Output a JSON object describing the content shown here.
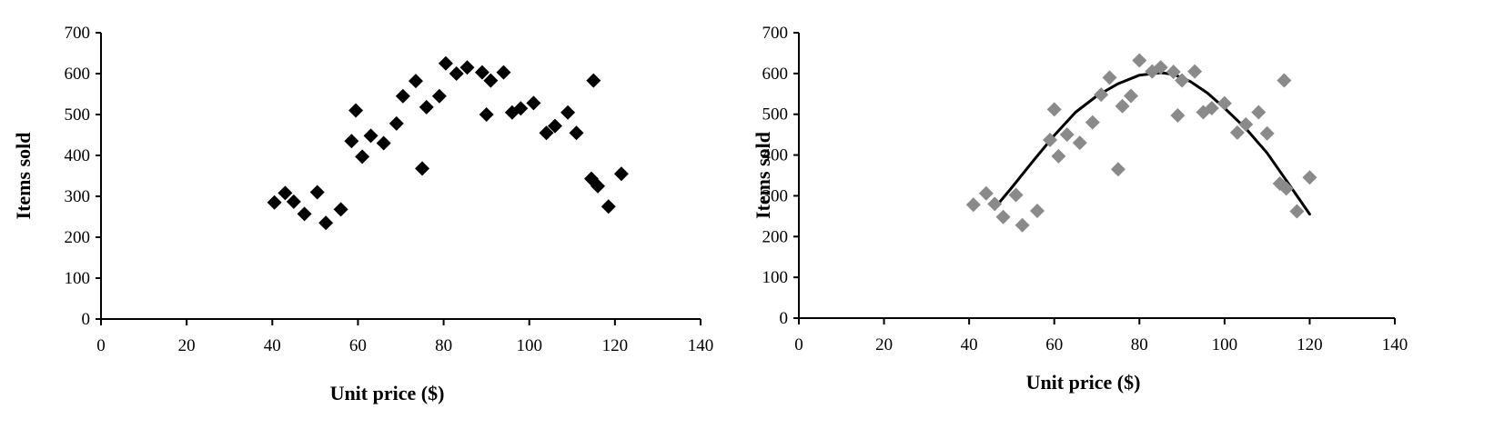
{
  "chart_data": [
    {
      "type": "scatter",
      "title": "",
      "xlabel": "Unit price ($)",
      "ylabel": "Items sold",
      "xlim": [
        0,
        140
      ],
      "ylim": [
        0,
        700
      ],
      "xticks": [
        0,
        20,
        40,
        60,
        80,
        100,
        120,
        140
      ],
      "yticks": [
        0,
        100,
        200,
        300,
        400,
        500,
        600,
        700
      ],
      "grid": false,
      "marker": "diamond",
      "marker_color": "#000000",
      "series": [
        {
          "points": [
            [
              40.5,
              285
            ],
            [
              43,
              308
            ],
            [
              45,
              287
            ],
            [
              47.5,
              257
            ],
            [
              50.5,
              310
            ],
            [
              52.5,
              235
            ],
            [
              56,
              268
            ],
            [
              58.5,
              435
            ],
            [
              59.5,
              510
            ],
            [
              61,
              397
            ],
            [
              63,
              448
            ],
            [
              66,
              430
            ],
            [
              69,
              478
            ],
            [
              70.5,
              545
            ],
            [
              73.5,
              582
            ],
            [
              75,
              368
            ],
            [
              76,
              518
            ],
            [
              79,
              545
            ],
            [
              80.5,
              625
            ],
            [
              83,
              600
            ],
            [
              85.5,
              615
            ],
            [
              89,
              603
            ],
            [
              90,
              500
            ],
            [
              91,
              583
            ],
            [
              94,
              603
            ],
            [
              96,
              505
            ],
            [
              98,
              515
            ],
            [
              101,
              528
            ],
            [
              104,
              455
            ],
            [
              106,
              472
            ],
            [
              109,
              505
            ],
            [
              111,
              455
            ],
            [
              114.5,
              343
            ],
            [
              115,
              583
            ],
            [
              116,
              325
            ],
            [
              118.5,
              275
            ],
            [
              121.5,
              355
            ]
          ]
        }
      ]
    },
    {
      "type": "scatter",
      "title": "",
      "xlabel": "Unit price ($)",
      "ylabel": "Items sold",
      "xlim": [
        0,
        140
      ],
      "ylim": [
        0,
        700
      ],
      "xticks": [
        0,
        20,
        40,
        60,
        80,
        100,
        120,
        140
      ],
      "yticks": [
        0,
        100,
        200,
        300,
        400,
        500,
        600,
        700
      ],
      "grid": false,
      "marker": "diamond",
      "marker_color": "#8a8a8a",
      "trend_color": "#000000",
      "series": [
        {
          "points": [
            [
              41,
              278
            ],
            [
              44,
              306
            ],
            [
              46,
              280
            ],
            [
              48,
              248
            ],
            [
              51,
              302
            ],
            [
              52.5,
              228
            ],
            [
              56,
              263
            ],
            [
              59,
              437
            ],
            [
              60,
              512
            ],
            [
              61,
              397
            ],
            [
              63,
              450
            ],
            [
              66,
              430
            ],
            [
              69,
              480
            ],
            [
              71,
              548
            ],
            [
              73,
              590
            ],
            [
              75,
              365
            ],
            [
              76,
              520
            ],
            [
              78,
              545
            ],
            [
              80,
              632
            ],
            [
              83,
              605
            ],
            [
              85,
              615
            ],
            [
              88,
              604
            ],
            [
              89,
              497
            ],
            [
              90,
              583
            ],
            [
              93,
              605
            ],
            [
              95,
              505
            ],
            [
              97,
              515
            ],
            [
              100,
              527
            ],
            [
              103,
              455
            ],
            [
              105,
              475
            ],
            [
              108,
              505
            ],
            [
              110,
              453
            ],
            [
              113,
              330
            ],
            [
              114,
              583
            ],
            [
              114.5,
              318
            ],
            [
              117,
              262
            ],
            [
              120,
              345
            ]
          ]
        }
      ],
      "trend": {
        "points": [
          [
            46,
            270
          ],
          [
            50,
            320
          ],
          [
            55,
            385
          ],
          [
            60,
            448
          ],
          [
            65,
            505
          ],
          [
            70,
            545
          ],
          [
            75,
            575
          ],
          [
            80,
            596
          ],
          [
            85,
            602
          ],
          [
            88,
            598
          ],
          [
            92,
            580
          ],
          [
            96,
            552
          ],
          [
            100,
            515
          ],
          [
            105,
            465
          ],
          [
            110,
            405
          ],
          [
            114,
            345
          ],
          [
            117,
            300
          ],
          [
            120,
            255
          ]
        ]
      }
    }
  ]
}
